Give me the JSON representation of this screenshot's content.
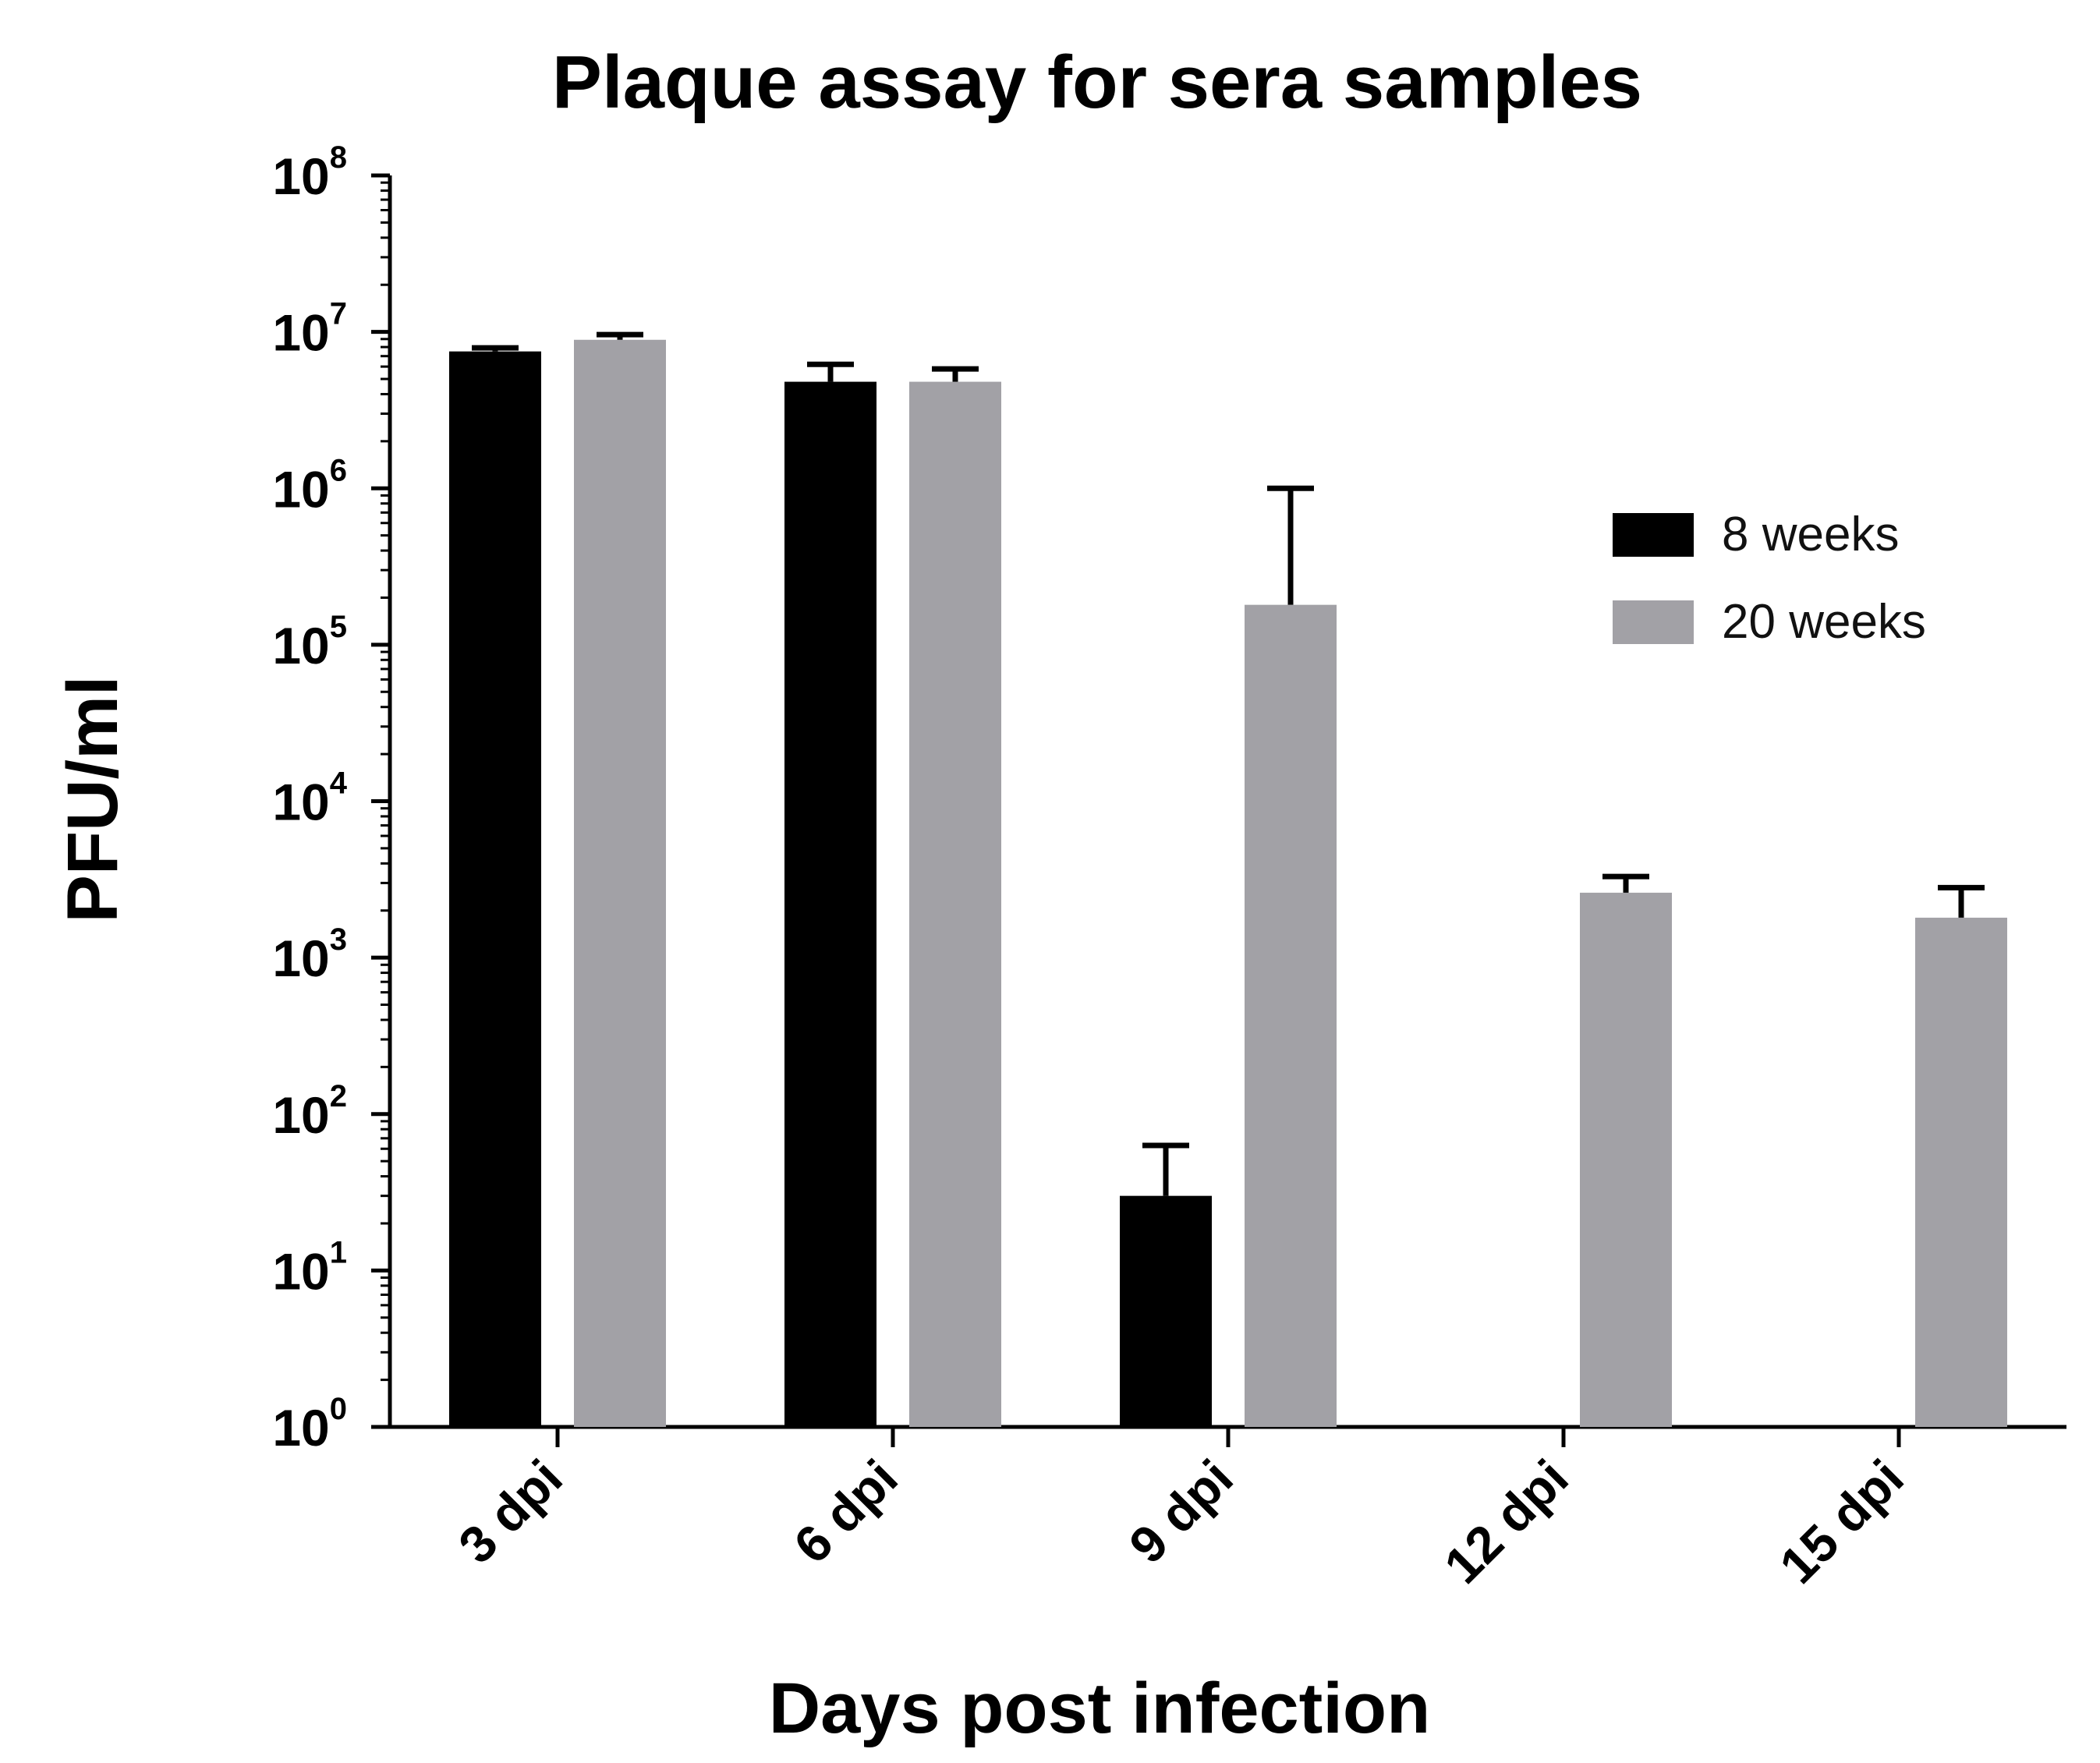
{
  "chart_data": {
    "type": "bar",
    "title": "Plaque assay for sera samples",
    "xlabel": "Days post infection",
    "ylabel": "PFU/ml",
    "yscale": "log",
    "ylim": [
      1,
      100000000
    ],
    "ytick_labels": [
      {
        "base": "10",
        "exp": "0"
      },
      {
        "base": "10",
        "exp": "1"
      },
      {
        "base": "10",
        "exp": "2"
      },
      {
        "base": "10",
        "exp": "3"
      },
      {
        "base": "10",
        "exp": "4"
      },
      {
        "base": "10",
        "exp": "5"
      },
      {
        "base": "10",
        "exp": "6"
      },
      {
        "base": "10",
        "exp": "7"
      },
      {
        "base": "10",
        "exp": "8"
      }
    ],
    "categories": [
      "3 dpi",
      "6 dpi",
      "9 dpi",
      "12 dpi",
      "15 dpi"
    ],
    "series": [
      {
        "name": "8 weeks",
        "color": "#000000",
        "values": [
          7500000,
          4800000,
          30,
          null,
          null
        ],
        "error_upper": [
          7900000,
          6200000,
          63,
          null,
          null
        ]
      },
      {
        "name": "20 weeks",
        "color": "#a2a1a6",
        "values": [
          8900000,
          4800000,
          180000,
          2600,
          1800
        ],
        "error_upper": [
          9600000,
          5800000,
          1000000,
          3300,
          2800
        ]
      }
    ],
    "grid": false,
    "legend_position": "right"
  }
}
